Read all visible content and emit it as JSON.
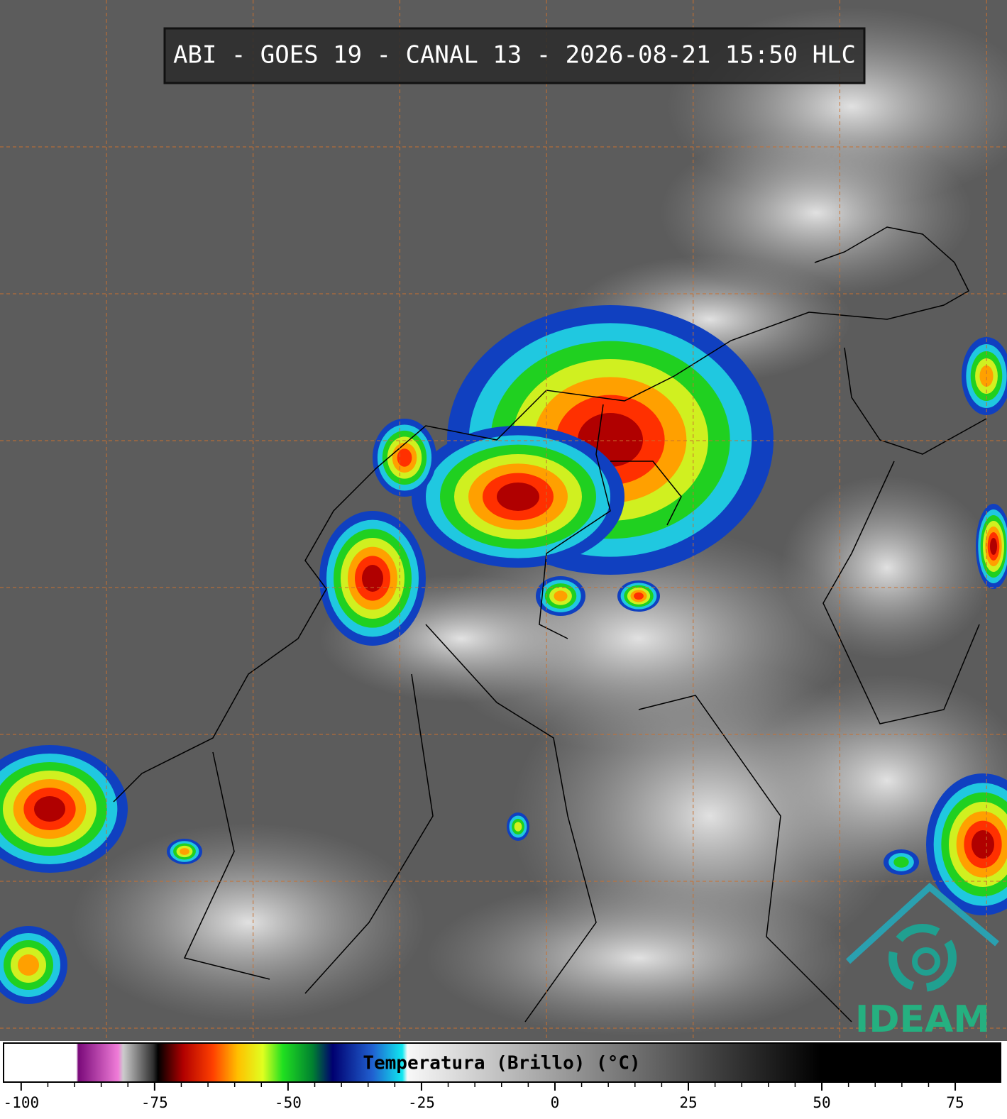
{
  "title": "ABI - GOES 19 - CANAL 13 - 2026-08-21 15:50 HLC",
  "colorbar": {
    "label": "Temperatura (Brillo) (°C)",
    "xlim": [
      -103.3,
      83.5
    ],
    "ticks": [
      -100,
      -75,
      -50,
      -25,
      0,
      25,
      50,
      75
    ]
  },
  "logo": "IDEAM"
}
